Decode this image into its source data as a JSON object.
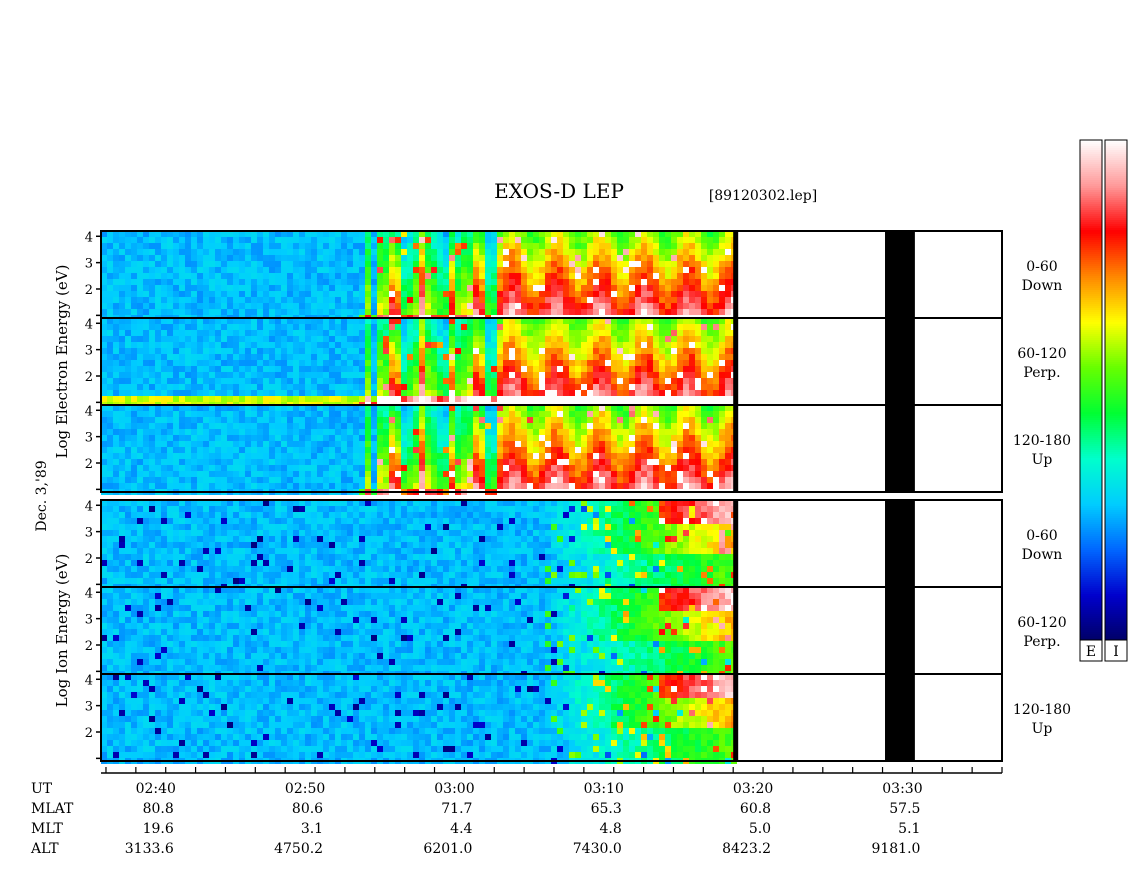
{
  "chart_data": {
    "type": "heatmap",
    "title": "EXOS-D LEP",
    "file_label": "[89120302.lep]",
    "date_label": "Dec. 3,'89",
    "energy_axis": {
      "scale": "log",
      "ticks": [
        "1",
        "2",
        "3",
        "4"
      ],
      "tick_values": [
        1,
        2,
        3,
        4
      ],
      "range": [
        0.9,
        4.2
      ]
    },
    "groups": [
      {
        "id": "electron",
        "ylabel": "Log Electron Energy (eV)",
        "panels": [
          {
            "id": "e-down",
            "label_lines": [
              "0-60",
              "Down"
            ]
          },
          {
            "id": "e-perp",
            "label_lines": [
              "60-120",
              "Perp."
            ]
          },
          {
            "id": "e-up",
            "label_lines": [
              "120-180",
              "Up"
            ]
          }
        ]
      },
      {
        "id": "ion",
        "ylabel": "Log Ion Energy (eV)",
        "panels": [
          {
            "id": "i-down",
            "label_lines": [
              "0-60",
              "Down"
            ]
          },
          {
            "id": "i-perp",
            "label_lines": [
              "60-120",
              "Perp."
            ]
          },
          {
            "id": "i-up",
            "label_lines": [
              "120-180",
              "Up"
            ]
          }
        ]
      }
    ],
    "time_range": [
      "02:36:20",
      "03:36:40"
    ],
    "data_end_time": "03:18:40",
    "data_gap": {
      "start": "03:28:50",
      "end": "03:30:50"
    },
    "x_tick_labels": [
      "02:40",
      "02:50",
      "03:00",
      "03:10",
      "03:20",
      "03:30"
    ],
    "ephemeris": {
      "labels": [
        "UT",
        "MLAT",
        "MLT",
        "ALT"
      ],
      "columns": [
        {
          "ut": "02:40",
          "mlat": "80.8",
          "mlt": "19.6",
          "alt": "3133.6"
        },
        {
          "ut": "02:50",
          "mlat": "80.6",
          "mlt": "3.1",
          "alt": "4750.2"
        },
        {
          "ut": "03:00",
          "mlat": "71.7",
          "mlt": "4.4",
          "alt": "6201.0"
        },
        {
          "ut": "03:10",
          "mlat": "65.3",
          "mlt": "4.8",
          "alt": "7430.0"
        },
        {
          "ut": "03:20",
          "mlat": "60.8",
          "mlt": "5.0",
          "alt": "8423.2"
        },
        {
          "ut": "03:30",
          "mlat": "57.5",
          "mlt": "5.1",
          "alt": "9181.0"
        }
      ]
    },
    "colorbars": [
      {
        "label": "E"
      },
      {
        "label": "I"
      }
    ],
    "colormap": [
      "#000066",
      "#0000cc",
      "#0066ff",
      "#00ccff",
      "#00ffcc",
      "#00ff33",
      "#66ff00",
      "#ffff00",
      "#ff8800",
      "#ff0000",
      "#ff9999",
      "#ffffff"
    ]
  }
}
